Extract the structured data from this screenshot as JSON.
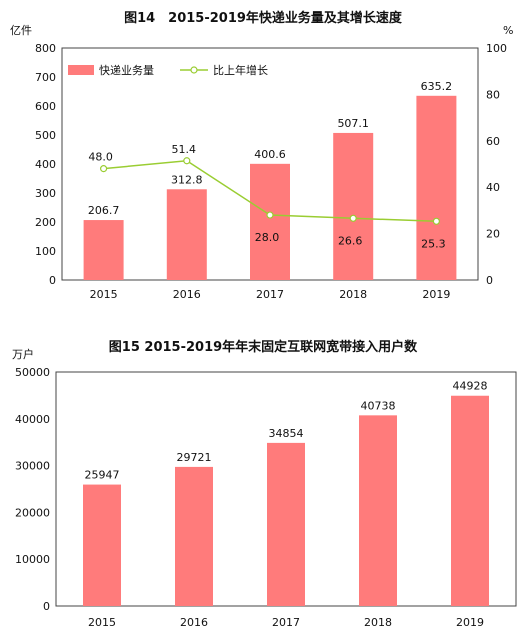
{
  "chart_data": [
    {
      "type": "bar",
      "title": "图14　2015-2019年快递业务量及其增长速度",
      "ylabel": "亿件",
      "y2label": "%",
      "ylim": [
        0,
        800
      ],
      "y2lim": [
        0,
        100
      ],
      "yticks": [
        "0",
        "100",
        "200",
        "300",
        "400",
        "500",
        "600",
        "700",
        "800"
      ],
      "y2ticks": [
        "0",
        "20",
        "40",
        "60",
        "80",
        "100"
      ],
      "categories": [
        "2015",
        "2016",
        "2017",
        "2018",
        "2019"
      ],
      "series": [
        {
          "name": "快递业务量",
          "type": "bar",
          "axis": "left",
          "values": [
            206.7,
            312.8,
            400.6,
            507.1,
            635.2
          ],
          "labels": [
            "206.7",
            "312.8",
            "400.6",
            "507.1",
            "635.2"
          ],
          "color": "#ff7b7b"
        },
        {
          "name": "比上年增长",
          "type": "line",
          "axis": "right",
          "values": [
            48.0,
            51.4,
            28.0,
            26.6,
            25.3
          ],
          "labels": [
            "48.0",
            "51.4",
            "28.0",
            "26.6",
            "25.3"
          ],
          "color": "#9acd32"
        }
      ],
      "legend": "top-left",
      "grid": false
    },
    {
      "type": "bar",
      "title": "图15 2015-2019年年末固定互联网宽带接入用户数",
      "ylabel": "万户",
      "ylim": [
        0,
        50000
      ],
      "yticks": [
        "0",
        "10000",
        "20000",
        "30000",
        "40000",
        "50000"
      ],
      "categories": [
        "2015",
        "2016",
        "2017",
        "2018",
        "2019"
      ],
      "series": [
        {
          "values": [
            25947,
            29721,
            34854,
            40738,
            44928
          ],
          "labels": [
            "25947",
            "29721",
            "34854",
            "40738",
            "44928"
          ],
          "color": "#ff7b7b"
        }
      ],
      "grid": false
    }
  ]
}
